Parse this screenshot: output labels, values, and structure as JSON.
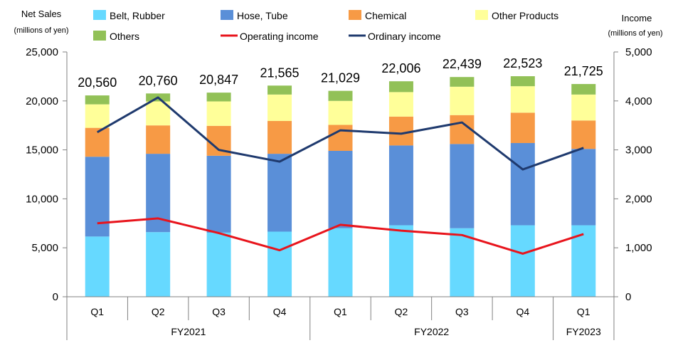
{
  "chart_data": {
    "type": "bar",
    "stacked": true,
    "categories": [
      "Q1",
      "Q2",
      "Q3",
      "Q4",
      "Q1",
      "Q2",
      "Q3",
      "Q4",
      "Q1"
    ],
    "groups": [
      {
        "label": "FY2021"
      },
      {
        "label": "FY2022"
      },
      {
        "label": "FY2023"
      }
    ],
    "series": [
      {
        "name": "Belt, Rubber",
        "color": "#66d9ff",
        "values": [
          6150,
          6600,
          6550,
          6650,
          7000,
          7300,
          7000,
          7300,
          7300
        ]
      },
      {
        "name": "Hose, Tube",
        "color": "#5a8fd8",
        "values": [
          8150,
          8000,
          7850,
          7950,
          7900,
          8150,
          8600,
          8400,
          7800
        ]
      },
      {
        "name": "Chemical",
        "color": "#f79a45",
        "values": [
          2950,
          2900,
          3050,
          3350,
          2650,
          2950,
          2950,
          3100,
          2900
        ]
      },
      {
        "name": "Other Products",
        "color": "#ffff99",
        "values": [
          2400,
          2450,
          2500,
          2700,
          2450,
          2500,
          2900,
          2700,
          2650
        ]
      },
      {
        "name": "Others",
        "color": "#92c157",
        "values": [
          910,
          810,
          897,
          915,
          1029,
          1106,
          989,
          1023,
          1075
        ]
      }
    ],
    "totals": [
      "20,560",
      "20,760",
      "20,847",
      "21,565",
      "21,029",
      "22,006",
      "22,439",
      "22,523",
      "21,725"
    ],
    "line_series": [
      {
        "name": "Operating income",
        "color": "#e8141c",
        "values": [
          1500,
          1600,
          1300,
          950,
          1470,
          1350,
          1260,
          880,
          1280
        ]
      },
      {
        "name": "Ordinary income",
        "color": "#1f3a6e",
        "values": [
          3360,
          4070,
          3000,
          2760,
          3400,
          3330,
          3560,
          2600,
          3040
        ]
      }
    ],
    "ylabel": "Net Sales",
    "ylabel_unit": "(millions of yen)",
    "y2label": "Income",
    "y2label_unit": "(millions of yen)",
    "ylim": [
      0,
      25000
    ],
    "y2lim": [
      0,
      5000
    ],
    "yticks": [
      "0",
      "5,000",
      "10,000",
      "15,000",
      "20,000",
      "25,000"
    ],
    "y2ticks": [
      "0",
      "1,000",
      "2,000",
      "3,000",
      "4,000",
      "5,000"
    ],
    "legend_position": "top"
  }
}
